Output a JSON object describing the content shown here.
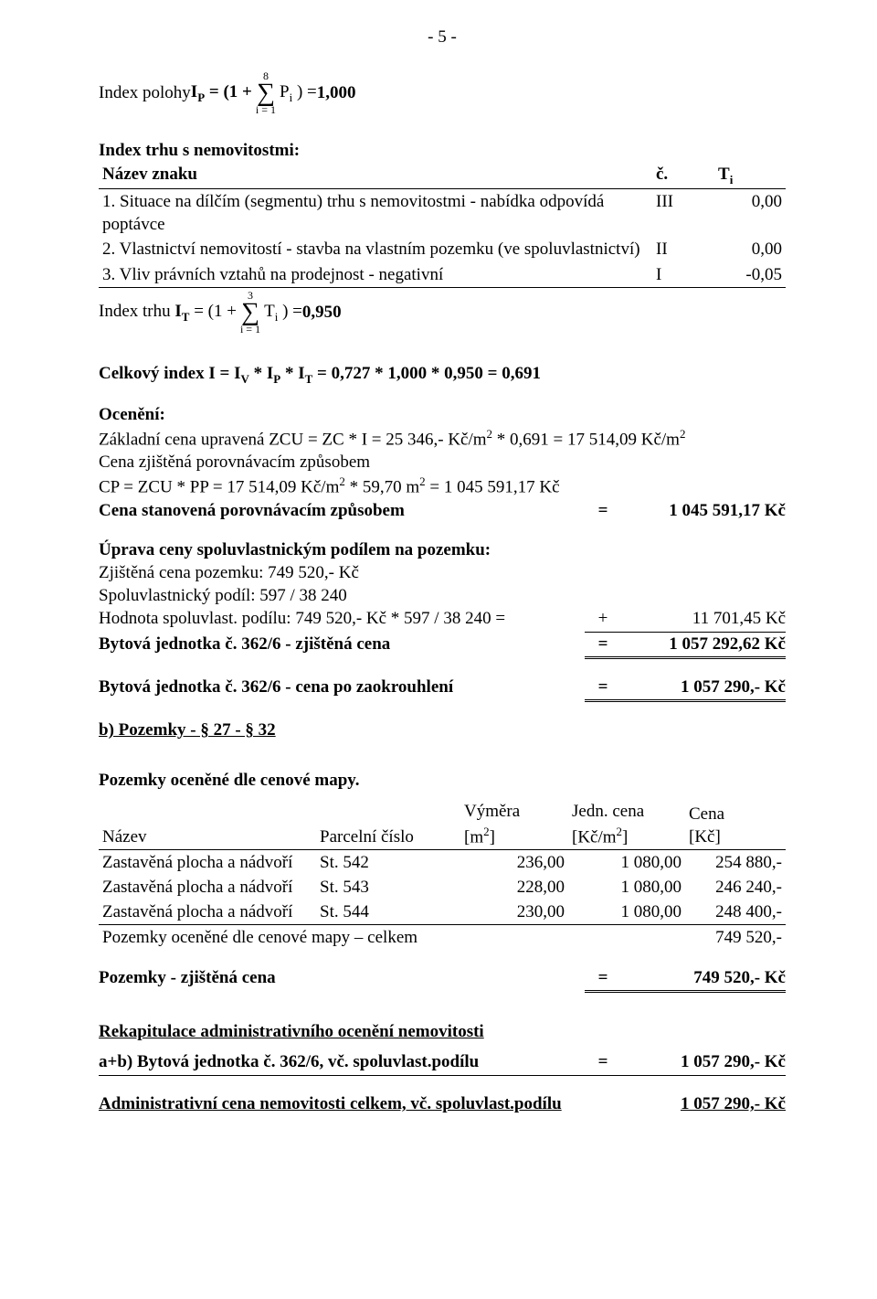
{
  "page_number_label": "- 5 -",
  "ip_formula": {
    "prefix": "Index polohy ",
    "symbol_html": "I<span class='sub'>P</span> = (1 + ",
    "sum_top": "8",
    "sum_bottom": "i = 1",
    "after_sum_html": " P<span class='sub'>i</span> ) = ",
    "result": "1,000"
  },
  "trhu_section_title": "Index trhu s nemovitostmi:",
  "trhu_header": {
    "name": "Název znaku",
    "col_c": "č.",
    "col_t_html": "T<span class='sub'>i</span>"
  },
  "trhu_rows": [
    {
      "name": "1. Situace na dílčím (segmentu) trhu s nemovitostmi - nabídka odpovídá poptávce",
      "c": "III",
      "t": "0,00"
    },
    {
      "name": "2. Vlastnictví nemovitostí - stavba na vlastním pozemku (ve spoluvlastnictví)",
      "c": "II",
      "t": "0,00"
    },
    {
      "name": "3. Vliv právních vztahů na prodejnost - negativní",
      "c": "I",
      "t": "-0,05"
    }
  ],
  "it_formula": {
    "prefix_html": "Index trhu <span class='bold'>I<span class='sub'>T</span></span> = (1 + ",
    "sum_top": "3",
    "sum_bottom": "i = 1",
    "after_sum_html": " T<span class='sub'>i</span> ) = ",
    "result": "0,950"
  },
  "celkovy_index_html": "Celkový index I = I<span class='sub'>V</span> * I<span class='sub'>P</span> * I<span class='sub'>T</span> = 0,727 * 1,000 * 0,950 = 0,691",
  "oceneni_title": "Ocenění:",
  "oceneni_lines": [
    "Základní cena upravená ZCU = ZC * I = 25 346,- Kč/m<span class='sup'>2</span> * 0,691  = 17 514,09 Kč/m<span class='sup'>2</span>",
    "Cena zjištěná porovnávacím způsobem",
    "CP = ZCU * PP = 17 514,09 Kč/m<span class='sup'>2</span> * 59,70 m<span class='sup'>2</span> = 1 045 591,17 Kč"
  ],
  "cena_stanovena": {
    "label": "Cena stanovená porovnávacím způsobem",
    "eq": "=",
    "value": "1 045 591,17 Kč"
  },
  "uprava_title": "Úprava ceny spoluvlastnickým podílem na pozemku:",
  "uprava_lines": [
    "Zjištěná cena pozemku: 749 520,- Kč",
    "Spoluvlastnický podíl: 597 / 38 240"
  ],
  "hodnota_line": {
    "label": "Hodnota spoluvlast. podílu:  749 520,- Kč * 597 / 38 240  =",
    "eq": "+",
    "value": "11 701,45 Kč"
  },
  "bytova_zjistena": {
    "label": "Bytová jednotka č. 362/6 - zjištěná cena",
    "eq": "=",
    "value": "1 057 292,62 Kč"
  },
  "bytova_zaokr": {
    "label": "Bytová jednotka č. 362/6 - cena po zaokrouhlení",
    "eq": "=",
    "value": "1 057 290,- Kč"
  },
  "section_b_title": "b) Pozemky  - § 27 - § 32",
  "pozemky_map_title": "Pozemky oceněné dle cenové mapy.",
  "pozemky_header": {
    "name": "Název",
    "parc": "Parcelní číslo",
    "vym_html": "Výměra<br>[m<span class='sup'>2</span>]",
    "jedn_html": "Jedn. cena<br>[Kč/m<span class='sup'>2</span>]",
    "cena_html": "Cena<br>[Kč]"
  },
  "pozemky_rows": [
    {
      "name": "Zastavěná plocha a nádvoří",
      "parc": "St. 542",
      "vym": "236,00",
      "jedn": "1 080,00",
      "cena": "254 880,-"
    },
    {
      "name": "Zastavěná plocha a nádvoří",
      "parc": "St. 543",
      "vym": "228,00",
      "jedn": "1 080,00",
      "cena": "246 240,-"
    },
    {
      "name": "Zastavěná plocha a nádvoří",
      "parc": "St. 544",
      "vym": "230,00",
      "jedn": "1 080,00",
      "cena": "248 400,-"
    }
  ],
  "pozemky_total": {
    "label": "Pozemky oceněné dle cenové mapy – celkem",
    "value": "749 520,-"
  },
  "pozemky_zjistena": {
    "label": "Pozemky - zjištěná cena",
    "eq": "=",
    "value": "749 520,- Kč"
  },
  "rekap_title": "Rekapitulace administrativního ocenění nemovitosti",
  "rekap_ab": {
    "label": "a+b) Bytová jednotka č. 362/6, vč. spoluvlast.podílu",
    "eq": "=",
    "value": "1 057 290,- Kč"
  },
  "admin_cena": {
    "label": "Administrativní cena nemovitosti celkem, vč. spoluvlast.podílu",
    "value": "1 057 290,- Kč"
  }
}
